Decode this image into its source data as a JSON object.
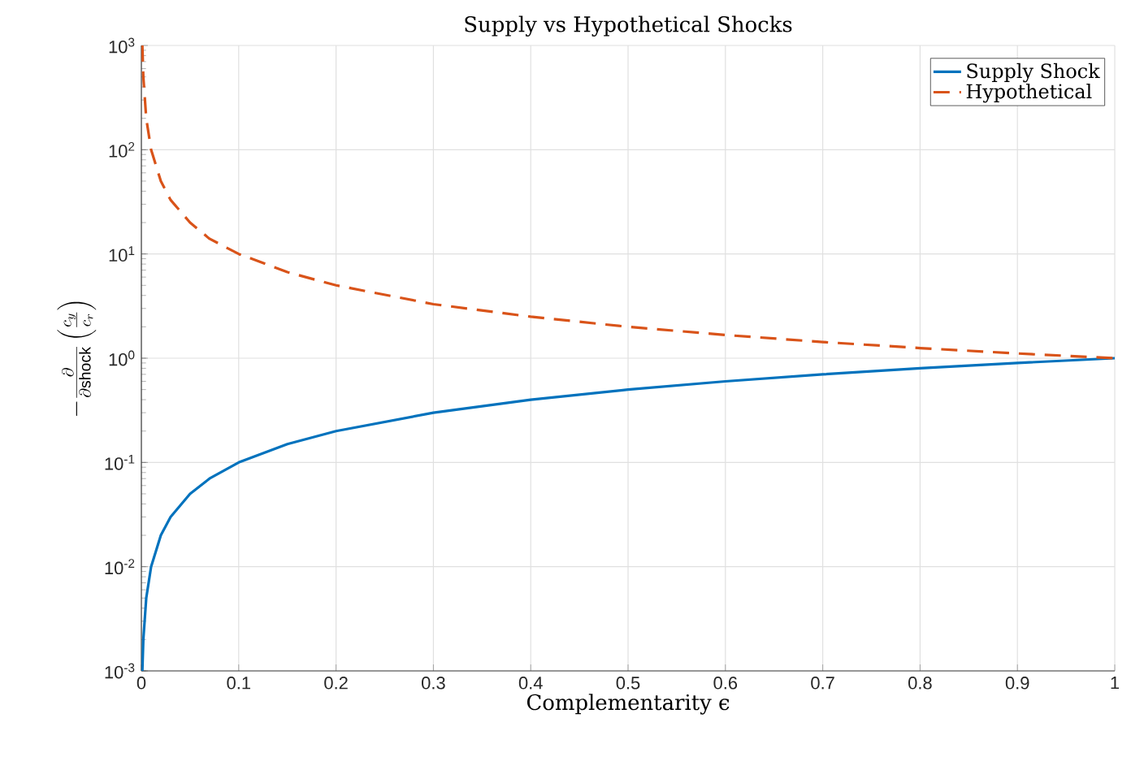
{
  "chart_data": {
    "type": "line",
    "title": "Supply vs Hypothetical Shocks",
    "xlabel": "Complementarity ϵ",
    "ylabel": "-\\frac{\\partial}{\\partial \\mathrm{shock}}\\left(\\frac{c_y}{c_r}\\right)",
    "log": "y",
    "grid": true,
    "legend": "top right",
    "xlim": [
      0,
      1
    ],
    "ylim": [
      0.001,
      1000
    ],
    "xticks": [
      0,
      0.1,
      0.2,
      0.3,
      0.4,
      0.5,
      0.6,
      0.7,
      0.8,
      0.9,
      1
    ],
    "yticks": [
      {
        "value": 0.001,
        "label": "10$^{-3}$"
      },
      {
        "value": 0.01,
        "label": "10$^{-2}$"
      },
      {
        "value": 0.1,
        "label": "10$^{-1}$"
      },
      {
        "value": 1,
        "label": "10$^{0}$"
      },
      {
        "value": 10,
        "label": "10$^{1}$"
      },
      {
        "value": 100,
        "label": "10$^{2}$"
      },
      {
        "value": 1000,
        "label": "10$^{3}$"
      }
    ],
    "series": [
      {
        "name": "Supply Shock",
        "color": "#0072bd",
        "line_style": "solid",
        "x": [
          0.001,
          0.002,
          0.005,
          0.01,
          0.02,
          0.03,
          0.05,
          0.07,
          0.1,
          0.15,
          0.2,
          0.3,
          0.4,
          0.5,
          0.6,
          0.7,
          0.8,
          0.9,
          1
        ],
        "values": [
          0.001,
          0.002,
          0.005,
          0.01,
          0.02,
          0.03,
          0.05,
          0.07,
          0.1,
          0.15,
          0.2,
          0.3,
          0.4,
          0.5,
          0.6,
          0.7,
          0.8,
          0.9,
          1
        ]
      },
      {
        "name": "Hypothetical",
        "color": "#d95319",
        "line_style": "dashed",
        "x": [
          0.001,
          0.002,
          0.005,
          0.01,
          0.02,
          0.03,
          0.05,
          0.07,
          0.1,
          0.15,
          0.2,
          0.3,
          0.4,
          0.5,
          0.6,
          0.7,
          0.8,
          0.9,
          1
        ],
        "values": [
          1000,
          500,
          200,
          100,
          50,
          33,
          20,
          14,
          10,
          6.7,
          5,
          3.3,
          2.5,
          2,
          1.67,
          1.43,
          1.25,
          1.11,
          1
        ]
      }
    ]
  }
}
